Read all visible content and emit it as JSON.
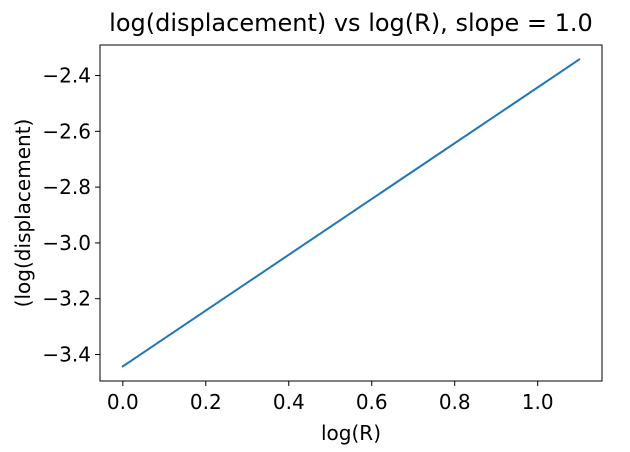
{
  "chart_data": {
    "type": "line",
    "title": "log(displacement) vs log(R), slope = 1.0",
    "xlabel": "log(R)",
    "ylabel": "(log(displacement)",
    "xlim": [
      -0.055,
      1.155
    ],
    "ylim": [
      -3.495,
      -2.2905
    ],
    "x_ticks": [
      0.0,
      0.2,
      0.4,
      0.6,
      0.8,
      1.0
    ],
    "x_tick_labels": [
      "0.0",
      "0.2",
      "0.4",
      "0.6",
      "0.8",
      "1.0"
    ],
    "y_ticks": [
      -3.4,
      -3.2,
      -3.0,
      -2.8,
      -2.6,
      -2.4
    ],
    "y_tick_labels": [
      "−3.4",
      "−3.2",
      "−3.0",
      "−2.8",
      "−2.6",
      "−2.4"
    ],
    "grid": false,
    "series": [
      {
        "color": "#1f77b4",
        "x": [
          0.0,
          1.1
        ],
        "y": [
          -3.4425,
          -2.3425
        ]
      }
    ]
  }
}
